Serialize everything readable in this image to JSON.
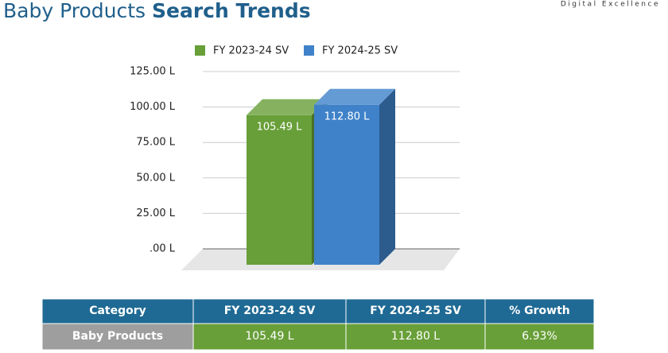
{
  "header": {
    "title": "Baby Products",
    "title_emphasis": "Search Trends",
    "brand": "Digital Excellence"
  },
  "chart_data": {
    "type": "bar3d",
    "categories": [
      null
    ],
    "series": [
      {
        "name": "FY 2023-24 SV",
        "color": "#689f38",
        "values": [
          105.49
        ],
        "value_labels": [
          "105.49 L"
        ]
      },
      {
        "name": "FY 2024-25 SV",
        "color": "#3f82c9",
        "values": [
          112.8
        ],
        "value_labels": [
          "112.80 L"
        ]
      }
    ],
    "ylim": [
      0,
      125
    ],
    "yticks": [
      {
        "value": 0,
        "label": ".00 L"
      },
      {
        "value": 25,
        "label": "25.00 L"
      },
      {
        "value": 50,
        "label": "50.00 L"
      },
      {
        "value": 75,
        "label": "75.00 L"
      },
      {
        "value": 100,
        "label": "100.00 L"
      },
      {
        "value": 125,
        "label": "125.00 L"
      }
    ],
    "grid": true,
    "legend": "top"
  },
  "table": {
    "header": [
      "Category",
      "FY 2023-24 SV",
      "FY 2024-25 SV",
      "% Growth"
    ],
    "rows": [
      [
        "Baby Products",
        "105.49 L",
        "112.80 L",
        "6.93%"
      ]
    ]
  }
}
